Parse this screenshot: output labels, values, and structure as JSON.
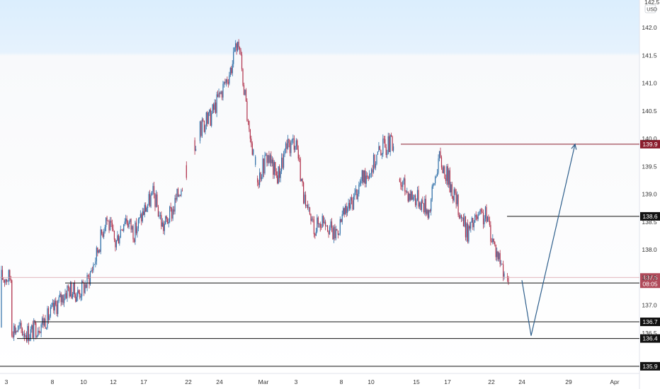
{
  "chart_data": {
    "type": "candlestick",
    "currency": "USD",
    "y_ticks": [
      142.0,
      141.5,
      141.0,
      140.5,
      140.0,
      139.5,
      139.0,
      138.5,
      138.0,
      137.5,
      137.0,
      136.5
    ],
    "y_axis_top_label": "142.5",
    "ylim": [
      135.8,
      142.55
    ],
    "x_ticks": [
      "3",
      "8",
      "10",
      "12",
      "17",
      "22",
      "24",
      "Mar",
      "3",
      "8",
      "10",
      "15",
      "17",
      "22",
      "24",
      "29",
      "Apr"
    ],
    "price_line": {
      "value": 137.5,
      "label": "137.5",
      "countdown": "08:05",
      "color": "#b04a5a"
    },
    "levels": [
      {
        "value": 139.9,
        "label": "139.9",
        "color": "#8a1c2c"
      },
      {
        "value": 138.6,
        "label": "138.6",
        "color": "#111111"
      },
      {
        "value": 137.4,
        "label": "137.4",
        "color": "#111111"
      },
      {
        "value": 136.7,
        "label": "136.7",
        "color": "#111111"
      },
      {
        "value": 136.4,
        "label": "136.4",
        "color": "#111111"
      },
      {
        "value": 135.9,
        "label": "135.9",
        "color": "#111111"
      }
    ],
    "projection": {
      "color": "#2e5f8c",
      "points": [
        {
          "x": "24",
          "y": 137.45
        },
        {
          "x": "25",
          "y": 136.45
        },
        {
          "x": "29",
          "y": 139.9
        }
      ]
    },
    "closes": [
      [
        1,
        136.6
      ],
      [
        3,
        136.5
      ],
      [
        5,
        136.8
      ],
      [
        7,
        137.3
      ],
      [
        8,
        137.2
      ],
      [
        9,
        137.4
      ],
      [
        10,
        137.9
      ],
      [
        11,
        138.6
      ],
      [
        12,
        138.1
      ],
      [
        13,
        138.6
      ],
      [
        14,
        138.3
      ],
      [
        15,
        138.7
      ],
      [
        16,
        139.0
      ],
      [
        17,
        138.4
      ],
      [
        18,
        138.7
      ],
      [
        21,
        140.2
      ],
      [
        22,
        140.4
      ],
      [
        23,
        140.8
      ],
      [
        24,
        141.2
      ],
      [
        25,
        141.75
      ],
      [
        26,
        140.1
      ],
      [
        27,
        139.3
      ],
      [
        28,
        139.7
      ],
      [
        29,
        139.3
      ],
      [
        30,
        139.8
      ],
      [
        31,
        140.0
      ],
      [
        32,
        138.7
      ],
      [
        33,
        138.4
      ],
      [
        34,
        138.6
      ],
      [
        35,
        138.25
      ],
      [
        36,
        138.6
      ],
      [
        37,
        138.9
      ],
      [
        38,
        139.3
      ],
      [
        39,
        139.5
      ],
      [
        40,
        139.85
      ],
      [
        41,
        139.9
      ],
      [
        42,
        139.2
      ],
      [
        43,
        139.0
      ],
      [
        44,
        138.9
      ],
      [
        45,
        138.7
      ],
      [
        46,
        139.65
      ],
      [
        47,
        139.3
      ],
      [
        48,
        138.8
      ],
      [
        49,
        138.3
      ],
      [
        50,
        138.55
      ],
      [
        51,
        138.6
      ],
      [
        52,
        138.0
      ],
      [
        53,
        137.6
      ],
      [
        53.4,
        137.5
      ]
    ],
    "up_color": "#2e6fa8",
    "down_color": "#b0304a"
  }
}
